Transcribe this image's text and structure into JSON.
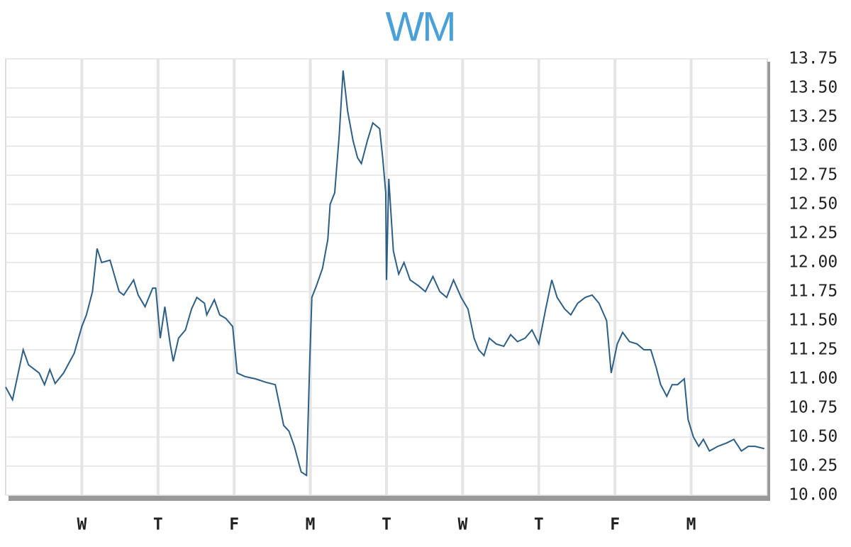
{
  "chart_data": {
    "type": "line",
    "title": "WM",
    "x": [
      0,
      0.09,
      0.23,
      0.3,
      0.44,
      0.51,
      0.58,
      0.65,
      0.76,
      0.9,
      1.0,
      1.06,
      1.14,
      1.2,
      1.26,
      1.37,
      1.49,
      1.55,
      1.68,
      1.74,
      1.83,
      1.93,
      1.97,
      2.03,
      2.09,
      2.16,
      2.2,
      2.27,
      2.36,
      2.44,
      2.51,
      2.61,
      2.64,
      2.74,
      2.81,
      2.89,
      2.98,
      3.04,
      3.14,
      3.28,
      3.42,
      3.54,
      3.65,
      3.72,
      3.79,
      3.88,
      3.95,
      3.99,
      4.02,
      4.08,
      4.16,
      4.23,
      4.26,
      4.32,
      4.38,
      4.43,
      4.49,
      4.56,
      4.62,
      4.67,
      4.75,
      4.82,
      4.91,
      4.95,
      4.99,
      5.0,
      5.03,
      5.09,
      5.16,
      5.23,
      5.31,
      5.42,
      5.51,
      5.61,
      5.7,
      5.79,
      5.88,
      5.98,
      6.07,
      6.15,
      6.21,
      6.28,
      6.35,
      6.44,
      6.54,
      6.63,
      6.72,
      6.82,
      6.91,
      7.0,
      7.09,
      7.17,
      7.24,
      7.34,
      7.42,
      7.51,
      7.61,
      7.7,
      7.79,
      7.89,
      7.95,
      8.03,
      8.1,
      8.19,
      8.29,
      8.38,
      8.47,
      8.54,
      8.6,
      8.68,
      8.75,
      8.82,
      8.91,
      8.96,
      9.03,
      9.1,
      9.16,
      9.24,
      9.35,
      9.47,
      9.56,
      9.66,
      9.75,
      9.84,
      9.96
    ],
    "series": [
      {
        "name": "WM",
        "color": "#2d5f86",
        "values": [
          10.93,
          10.82,
          11.25,
          11.12,
          11.05,
          10.95,
          11.08,
          10.96,
          11.05,
          11.22,
          11.45,
          11.55,
          11.75,
          12.12,
          12.0,
          12.02,
          11.75,
          11.72,
          11.85,
          11.72,
          11.62,
          11.78,
          11.78,
          11.35,
          11.62,
          11.3,
          11.15,
          11.35,
          11.42,
          11.6,
          11.7,
          11.65,
          11.55,
          11.68,
          11.55,
          11.52,
          11.45,
          11.05,
          11.02,
          11.0,
          10.97,
          10.95,
          10.6,
          10.55,
          10.42,
          10.2,
          10.17,
          11.1,
          11.7,
          11.8,
          11.95,
          12.2,
          12.5,
          12.6,
          13.1,
          13.65,
          13.3,
          13.05,
          12.9,
          12.85,
          13.05,
          13.2,
          13.15,
          12.9,
          12.6,
          11.85,
          12.72,
          12.1,
          11.9,
          12.0,
          11.85,
          11.8,
          11.75,
          11.88,
          11.75,
          11.7,
          11.85,
          11.7,
          11.6,
          11.35,
          11.25,
          11.2,
          11.35,
          11.3,
          11.28,
          11.38,
          11.32,
          11.35,
          11.42,
          11.3,
          11.6,
          11.85,
          11.7,
          11.6,
          11.55,
          11.65,
          11.7,
          11.72,
          11.65,
          11.5,
          11.05,
          11.3,
          11.4,
          11.32,
          11.3,
          11.25,
          11.25,
          11.1,
          10.95,
          10.85,
          10.95,
          10.95,
          11.0,
          10.65,
          10.5,
          10.42,
          10.48,
          10.38,
          10.42,
          10.45,
          10.48,
          10.38,
          10.42,
          10.42,
          10.4
        ]
      }
    ],
    "xlim": [
      0,
      10
    ],
    "xticks": [
      {
        "value": 1,
        "label": "W"
      },
      {
        "value": 2,
        "label": "T"
      },
      {
        "value": 3,
        "label": "F"
      },
      {
        "value": 4,
        "label": "M"
      },
      {
        "value": 5,
        "label": "T"
      },
      {
        "value": 6,
        "label": "W"
      },
      {
        "value": 7,
        "label": "T"
      },
      {
        "value": 8,
        "label": "F"
      },
      {
        "value": 9,
        "label": "M"
      }
    ],
    "ylim": [
      10,
      13.75
    ],
    "yticks": [
      {
        "value": 10,
        "label": "10.00"
      },
      {
        "value": 10.25,
        "label": "10.25"
      },
      {
        "value": 10.5,
        "label": "10.50"
      },
      {
        "value": 10.75,
        "label": "10.75"
      },
      {
        "value": 11,
        "label": "11.00"
      },
      {
        "value": 11.25,
        "label": "11.25"
      },
      {
        "value": 11.5,
        "label": "11.50"
      },
      {
        "value": 11.75,
        "label": "11.75"
      },
      {
        "value": 12,
        "label": "12.00"
      },
      {
        "value": 12.25,
        "label": "12.25"
      },
      {
        "value": 12.5,
        "label": "12.50"
      },
      {
        "value": 12.75,
        "label": "12.75"
      },
      {
        "value": 13,
        "label": "13.00"
      },
      {
        "value": 13.25,
        "label": "13.25"
      },
      {
        "value": 13.5,
        "label": "13.50"
      },
      {
        "value": 13.75,
        "label": "13.75"
      }
    ],
    "grid": true,
    "title_color": "#4aa0d8"
  }
}
